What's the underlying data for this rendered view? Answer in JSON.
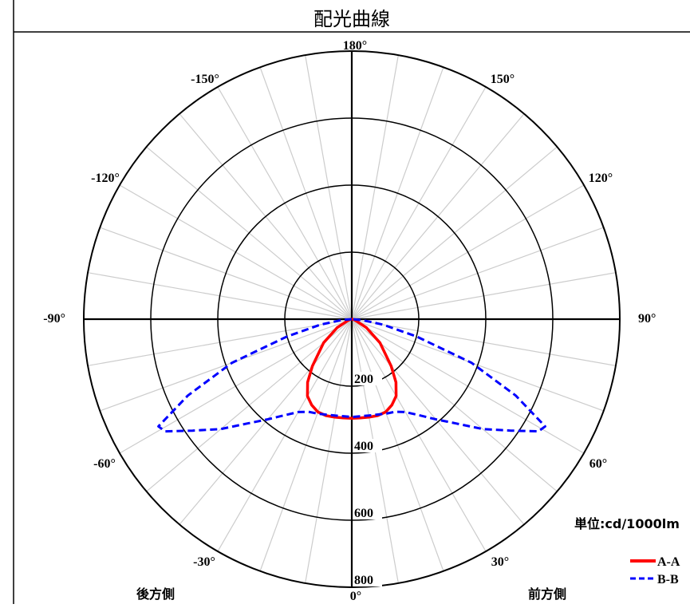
{
  "title": "配光曲線",
  "unit_label": "単位:cd/1000lm",
  "side_labels": {
    "rear": "後方側",
    "front": "前方側"
  },
  "colors": {
    "background": "#ffffff",
    "axis": "#000000",
    "ring_major": "#000000",
    "spoke": "#cccccc",
    "series_aa": "#ff0000",
    "series_bb": "#0000ff"
  },
  "chart_data": {
    "type": "polar",
    "title": "配光曲線",
    "unit": "単位:cd/1000lm",
    "angle_ticks": [
      "180°",
      "150°",
      "120°",
      "90°",
      "60°",
      "30°",
      "0°",
      "-30°",
      "-60°",
      "-90°",
      "-120°",
      "-150°"
    ],
    "angle_tick_values": [
      180,
      150,
      120,
      90,
      60,
      30,
      0,
      -30,
      -60,
      -90,
      -120,
      -150
    ],
    "radial_ticks": [
      "200",
      "400",
      "600",
      "800"
    ],
    "radial_tick_values": [
      200,
      400,
      600,
      800
    ],
    "radial_range": [
      0,
      800
    ],
    "spoke_step_deg": 10,
    "series": [
      {
        "name": "A-A",
        "color": "#ff0000",
        "style": "solid",
        "points": [
          [
            -180,
            0
          ],
          [
            -90,
            0
          ],
          [
            -80,
            5
          ],
          [
            -70,
            12
          ],
          [
            -60,
            50
          ],
          [
            -50,
            110
          ],
          [
            -40,
            183
          ],
          [
            -35,
            230
          ],
          [
            -30,
            265
          ],
          [
            -25,
            283
          ],
          [
            -20,
            295
          ],
          [
            -15,
            298
          ],
          [
            -10,
            297
          ],
          [
            -5,
            296
          ],
          [
            0,
            296
          ],
          [
            5,
            296
          ],
          [
            10,
            297
          ],
          [
            15,
            298
          ],
          [
            20,
            295
          ],
          [
            25,
            283
          ],
          [
            30,
            265
          ],
          [
            35,
            230
          ],
          [
            40,
            183
          ],
          [
            50,
            110
          ],
          [
            60,
            50
          ],
          [
            70,
            12
          ],
          [
            80,
            5
          ],
          [
            90,
            0
          ],
          [
            180,
            0
          ]
        ]
      },
      {
        "name": "B-B",
        "color": "#0000ff",
        "style": "dashed",
        "points": [
          [
            -180,
            0
          ],
          [
            -90,
            0
          ],
          [
            -85,
            30
          ],
          [
            -80,
            95
          ],
          [
            -75,
            200
          ],
          [
            -70,
            380
          ],
          [
            -65,
            540
          ],
          [
            -61,
            660
          ],
          [
            -59,
            650
          ],
          [
            -55,
            580
          ],
          [
            -50,
            510
          ],
          [
            -45,
            440
          ],
          [
            -40,
            390
          ],
          [
            -35,
            350
          ],
          [
            -30,
            320
          ],
          [
            -25,
            305
          ],
          [
            -20,
            300
          ],
          [
            -10,
            292
          ],
          [
            0,
            292
          ],
          [
            10,
            292
          ],
          [
            20,
            300
          ],
          [
            25,
            305
          ],
          [
            30,
            320
          ],
          [
            35,
            350
          ],
          [
            40,
            390
          ],
          [
            45,
            440
          ],
          [
            50,
            510
          ],
          [
            55,
            580
          ],
          [
            59,
            650
          ],
          [
            61,
            660
          ],
          [
            65,
            540
          ],
          [
            70,
            380
          ],
          [
            75,
            200
          ],
          [
            80,
            95
          ],
          [
            85,
            30
          ],
          [
            90,
            0
          ],
          [
            180,
            0
          ]
        ]
      }
    ]
  }
}
